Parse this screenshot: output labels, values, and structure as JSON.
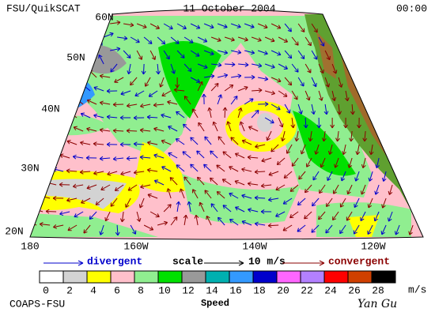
{
  "header": {
    "title": "FSU/QuikSCAT",
    "date": "11 October 2004",
    "time": "00:00"
  },
  "map": {
    "lat_labels": [
      "60N",
      "50N",
      "40N",
      "30N",
      "20N"
    ],
    "lon_labels": [
      "180",
      "160W",
      "140W",
      "120W"
    ]
  },
  "legend": {
    "divergent": "divergent",
    "scale": "scale",
    "scale_value": "10 m/s",
    "convergent": "convergent"
  },
  "colorbar": {
    "title": "Speed",
    "unit": "m/s",
    "labels": [
      0,
      2,
      4,
      6,
      8,
      10,
      12,
      14,
      16,
      18,
      20,
      22,
      24,
      26,
      28
    ],
    "colors": [
      "#ffffff",
      "#d3d3d3",
      "#ffff00",
      "#ffc0cb",
      "#90ee90",
      "#00e000",
      "#999999",
      "#00b0b0",
      "#3399ff",
      "#0000cc",
      "#ff66ff",
      "#b380ff",
      "#ff0000",
      "#d04000",
      "#000000"
    ]
  },
  "footer": {
    "credit": "COAPS-FSU",
    "author": "Yan Gu"
  }
}
